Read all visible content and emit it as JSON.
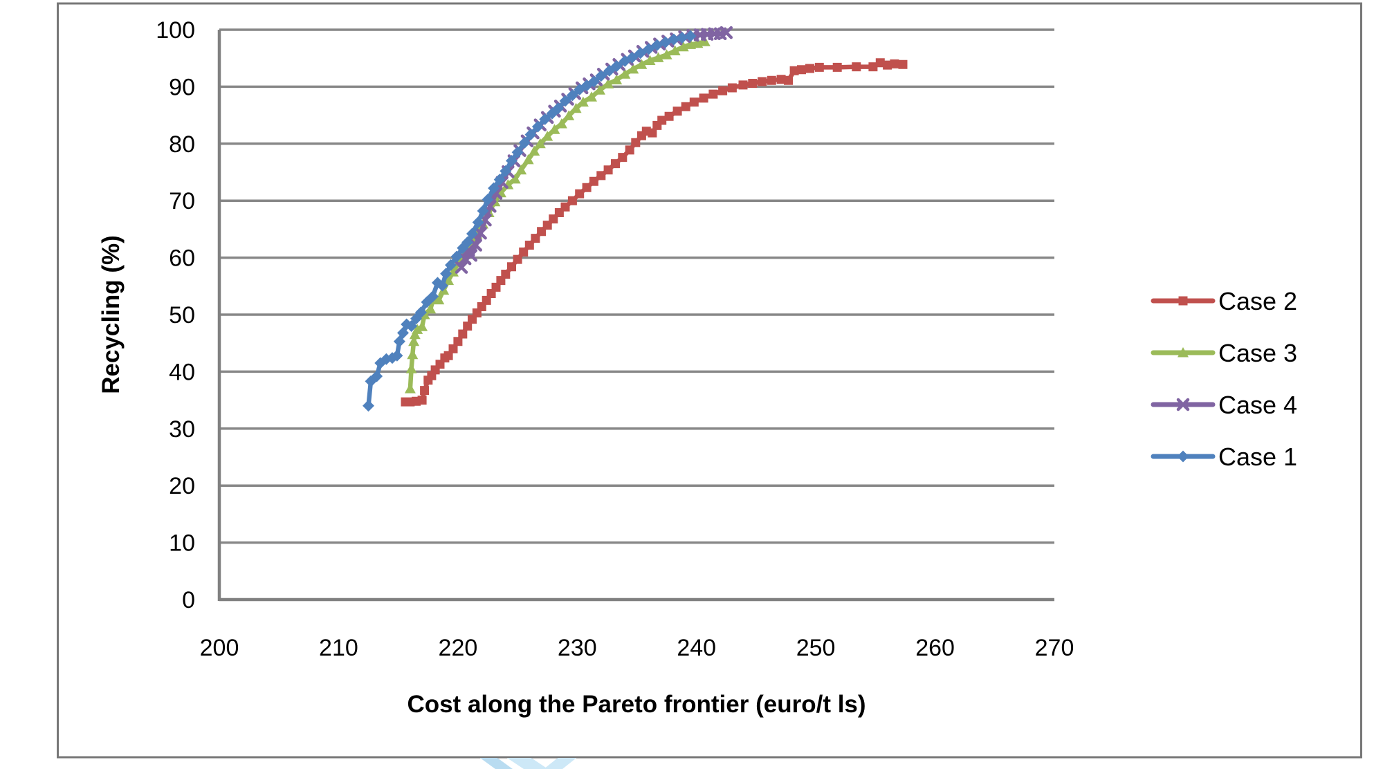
{
  "page": {
    "background_color": "#ffffff",
    "frame_border_color": "#777777"
  },
  "watermark": {
    "description": "light blue chevron logo fragment clipped at bottom edge",
    "colors": [
      "#b9dcf1",
      "#cde8f7"
    ]
  },
  "chart_data": {
    "type": "line",
    "title": "",
    "xlabel": "Cost along the Pareto frontier (euro/t ls)",
    "ylabel": "Recycling (%)",
    "xlim": [
      200,
      270
    ],
    "ylim": [
      0,
      100
    ],
    "xticks": [
      "200",
      "210",
      "220",
      "230",
      "240",
      "250",
      "260",
      "270"
    ],
    "yticks": [
      "0",
      "10",
      "20",
      "30",
      "40",
      "50",
      "60",
      "70",
      "80",
      "90",
      "100"
    ],
    "grid": "horizontal",
    "gridline_color": "#878787",
    "axis_color": "#808080",
    "legend_position": "right",
    "legend_order": [
      "Case 2",
      "Case 3",
      "Case 4",
      "Case 1"
    ],
    "series": [
      {
        "name": "Case 2",
        "color": "#C0504D",
        "marker": "square",
        "points": [
          [
            215.6,
            34.7
          ],
          [
            216,
            34.7
          ],
          [
            216.5,
            34.8
          ],
          [
            217,
            35
          ],
          [
            217.2,
            36.7
          ],
          [
            217.5,
            38.5
          ],
          [
            217.8,
            39.3
          ],
          [
            218.1,
            40.3
          ],
          [
            218.5,
            41.3
          ],
          [
            218.9,
            42.4
          ],
          [
            219.2,
            42.8
          ],
          [
            219.6,
            44
          ],
          [
            220,
            45.3
          ],
          [
            220.4,
            46.6
          ],
          [
            220.8,
            48
          ],
          [
            221.2,
            49.2
          ],
          [
            221.6,
            50.3
          ],
          [
            222,
            51.4
          ],
          [
            222.4,
            52.5
          ],
          [
            222.8,
            53.7
          ],
          [
            223.2,
            54.8
          ],
          [
            223.6,
            56
          ],
          [
            224,
            57.1
          ],
          [
            224.5,
            58.4
          ],
          [
            225,
            59.7
          ],
          [
            225.5,
            61
          ],
          [
            226,
            62.2
          ],
          [
            226.5,
            63.4
          ],
          [
            227,
            64.6
          ],
          [
            227.5,
            65.7
          ],
          [
            228,
            66.8
          ],
          [
            228.5,
            67.9
          ],
          [
            229,
            68.9
          ],
          [
            229.6,
            70
          ],
          [
            230.2,
            71.2
          ],
          [
            230.8,
            72.3
          ],
          [
            231.4,
            73.4
          ],
          [
            232,
            74.4
          ],
          [
            232.6,
            75.4
          ],
          [
            233.2,
            76.5
          ],
          [
            233.8,
            77.6
          ],
          [
            234.4,
            78.9
          ],
          [
            234.9,
            80.2
          ],
          [
            235.4,
            81.4
          ],
          [
            235.8,
            82.2
          ],
          [
            236.3,
            81.9
          ],
          [
            236.7,
            83.2
          ],
          [
            237.1,
            84.1
          ],
          [
            237.7,
            84.8
          ],
          [
            238.4,
            85.7
          ],
          [
            239.1,
            86.5
          ],
          [
            239.8,
            87.3
          ],
          [
            240.6,
            88
          ],
          [
            241.4,
            88.7
          ],
          [
            242.2,
            89.3
          ],
          [
            243,
            89.8
          ],
          [
            243.9,
            90.3
          ],
          [
            244.7,
            90.6
          ],
          [
            245.5,
            90.9
          ],
          [
            246.3,
            91.1
          ],
          [
            247.1,
            91.3
          ],
          [
            247.7,
            91.1
          ],
          [
            248.2,
            92.8
          ],
          [
            248.8,
            93
          ],
          [
            249.5,
            93.2
          ],
          [
            250.3,
            93.4
          ],
          [
            251.8,
            93.4
          ],
          [
            253.4,
            93.5
          ],
          [
            254.8,
            93.5
          ],
          [
            255.4,
            94.2
          ],
          [
            256,
            93.8
          ],
          [
            256.6,
            94
          ],
          [
            257.3,
            93.9
          ]
        ]
      },
      {
        "name": "Case 3",
        "color": "#9BBB59",
        "marker": "triangle",
        "points": [
          [
            216,
            37
          ],
          [
            216.1,
            40.5
          ],
          [
            216.2,
            43
          ],
          [
            216.3,
            45.3
          ],
          [
            216.4,
            46.5
          ],
          [
            216.6,
            47.4
          ],
          [
            217,
            47.9
          ],
          [
            217.2,
            50
          ],
          [
            217.7,
            51
          ],
          [
            218,
            53.2
          ],
          [
            218.4,
            52.6
          ],
          [
            218.8,
            54.3
          ],
          [
            219.2,
            56
          ],
          [
            219.6,
            57.5
          ],
          [
            220.1,
            59.2
          ],
          [
            220.6,
            60.8
          ],
          [
            221.1,
            62.4
          ],
          [
            221.6,
            64.1
          ],
          [
            222.1,
            65.9
          ],
          [
            222.6,
            67.9
          ],
          [
            223.1,
            69.8
          ],
          [
            223.6,
            71.4
          ],
          [
            224.2,
            72.8
          ],
          [
            224.8,
            73.8
          ],
          [
            225.3,
            75.4
          ],
          [
            225.9,
            77.2
          ],
          [
            226.4,
            78.7
          ],
          [
            226.9,
            80
          ],
          [
            227.5,
            81.3
          ],
          [
            228.1,
            82.5
          ],
          [
            228.7,
            83.5
          ],
          [
            229.3,
            84.9
          ],
          [
            229.9,
            86.2
          ],
          [
            230.5,
            87.3
          ],
          [
            231.2,
            88.2
          ],
          [
            231.9,
            89.4
          ],
          [
            232.6,
            90.5
          ],
          [
            233.3,
            91.2
          ],
          [
            234,
            92.2
          ],
          [
            234.7,
            93.1
          ],
          [
            235.4,
            93.9
          ],
          [
            236.1,
            94.6
          ],
          [
            236.8,
            95.1
          ],
          [
            237.5,
            95.6
          ],
          [
            238.2,
            96.3
          ],
          [
            238.9,
            97
          ],
          [
            239.5,
            97.4
          ],
          [
            240.1,
            97.6
          ],
          [
            240.7,
            97.9
          ]
        ]
      },
      {
        "name": "Case 4",
        "color": "#8064A2",
        "marker": "x",
        "points": [
          [
            220.3,
            58.3
          ],
          [
            220.6,
            59.8
          ],
          [
            220.9,
            61.3
          ],
          [
            221.1,
            60.4
          ],
          [
            221.5,
            62.2
          ],
          [
            221.9,
            64.3
          ],
          [
            222.3,
            66.6
          ],
          [
            222.7,
            69
          ],
          [
            223.2,
            71.3
          ],
          [
            223.7,
            73.2
          ],
          [
            224.2,
            75.1
          ],
          [
            224.7,
            77
          ],
          [
            225.2,
            78.8
          ],
          [
            225.8,
            80.5
          ],
          [
            226.3,
            81.9
          ],
          [
            226.9,
            83.3
          ],
          [
            227.5,
            84.6
          ],
          [
            228.1,
            85.7
          ],
          [
            228.6,
            86.6
          ],
          [
            229.2,
            87.8
          ],
          [
            229.8,
            88.8
          ],
          [
            230.4,
            89.8
          ],
          [
            231,
            90.5
          ],
          [
            231.6,
            91.2
          ],
          [
            232.2,
            92.2
          ],
          [
            232.9,
            93.1
          ],
          [
            233.5,
            93.9
          ],
          [
            234.2,
            94.8
          ],
          [
            234.8,
            95.4
          ],
          [
            235.5,
            96.2
          ],
          [
            236.2,
            96.9
          ],
          [
            236.9,
            97.5
          ],
          [
            237.6,
            98
          ],
          [
            238.3,
            98.4
          ],
          [
            239,
            98.8
          ],
          [
            239.7,
            99
          ],
          [
            240.3,
            99.1
          ],
          [
            240.9,
            99.2
          ],
          [
            241.5,
            99.3
          ],
          [
            242,
            99.3
          ],
          [
            242.5,
            99.5
          ]
        ]
      },
      {
        "name": "Case 1",
        "color": "#4F81BD",
        "marker": "diamond",
        "points": [
          [
            212.5,
            34
          ],
          [
            212.7,
            38.3
          ],
          [
            213.2,
            39.2
          ],
          [
            213.5,
            41.5
          ],
          [
            214,
            42.2
          ],
          [
            214.5,
            42.4
          ],
          [
            214.9,
            42.8
          ],
          [
            215.1,
            45.3
          ],
          [
            215.4,
            46.8
          ],
          [
            215.7,
            48.3
          ],
          [
            216.1,
            48
          ],
          [
            216.5,
            49.3
          ],
          [
            216.9,
            50.4
          ],
          [
            217.4,
            52.2
          ],
          [
            217.9,
            53.2
          ],
          [
            218.3,
            55.6
          ],
          [
            218.7,
            55.1
          ],
          [
            219,
            57.2
          ],
          [
            219.4,
            58.7
          ],
          [
            219.9,
            60.2
          ],
          [
            220.4,
            61.7
          ],
          [
            220.8,
            62.7
          ],
          [
            221.2,
            64.2
          ],
          [
            221.7,
            66.2
          ],
          [
            222.1,
            68.2
          ],
          [
            222.5,
            70.2
          ],
          [
            223,
            72.2
          ],
          [
            223.5,
            73.7
          ],
          [
            224,
            75.2
          ],
          [
            224.5,
            77
          ],
          [
            225,
            78.5
          ],
          [
            225.6,
            80.2
          ],
          [
            226.1,
            81.6
          ],
          [
            226.7,
            83
          ],
          [
            227.3,
            84.3
          ],
          [
            227.9,
            85.3
          ],
          [
            228.4,
            86.2
          ],
          [
            229,
            87.5
          ],
          [
            229.6,
            88.5
          ],
          [
            230.2,
            89.5
          ],
          [
            230.8,
            90.2
          ],
          [
            231.4,
            90.9
          ],
          [
            232,
            91.9
          ],
          [
            232.7,
            92.8
          ],
          [
            233.3,
            93.6
          ],
          [
            234,
            94.5
          ],
          [
            234.6,
            95.1
          ],
          [
            235.3,
            95.9
          ],
          [
            236,
            96.6
          ],
          [
            236.7,
            97.3
          ],
          [
            237.4,
            97.8
          ],
          [
            238.1,
            98.3
          ],
          [
            238.8,
            98.6
          ],
          [
            239.5,
            98.9
          ]
        ]
      }
    ]
  }
}
